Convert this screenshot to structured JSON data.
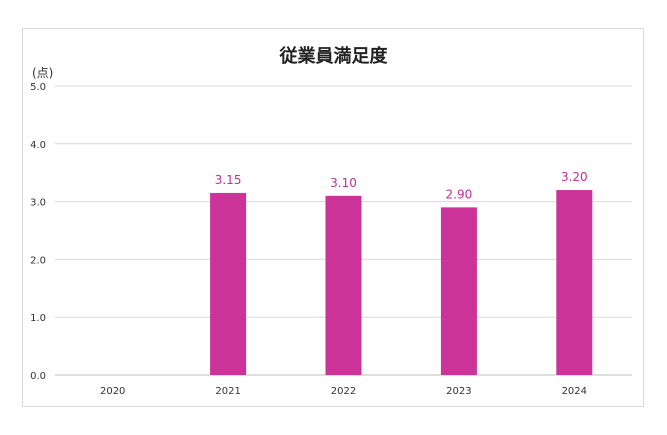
{
  "chart_data": {
    "type": "bar",
    "title": "従業員満足度",
    "ylabel": "(点)",
    "xlabel": "",
    "categories": [
      "2020",
      "2021",
      "2022",
      "2023",
      "2024"
    ],
    "values": [
      null,
      3.15,
      3.1,
      2.9,
      3.2
    ],
    "data_labels": [
      "",
      "3.15",
      "3.10",
      "2.90",
      "3.20"
    ],
    "yticks": [
      "0.0",
      "1.0",
      "2.0",
      "3.0",
      "4.0",
      "5.0"
    ],
    "ylim": [
      0,
      5
    ],
    "grid": true,
    "legend": "none",
    "bar_color": "#cc3399"
  }
}
